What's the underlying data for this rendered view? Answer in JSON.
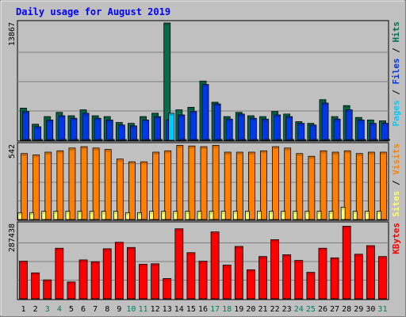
{
  "chart_data": {
    "type": "bar",
    "title": "Daily usage for August 2019",
    "categories": [
      "1",
      "2",
      "3",
      "4",
      "5",
      "6",
      "7",
      "8",
      "9",
      "10",
      "11",
      "12",
      "13",
      "14",
      "15",
      "16",
      "17",
      "18",
      "19",
      "20",
      "21",
      "22",
      "23",
      "24",
      "25",
      "26",
      "27",
      "28",
      "29",
      "30",
      "31"
    ],
    "weekend_days": [
      "3",
      "4",
      "10",
      "11",
      "17",
      "18",
      "24",
      "25",
      "31"
    ],
    "panels": [
      {
        "id": "hits_files_pages",
        "max_label": "13867",
        "ylim": [
          0,
          13867
        ],
        "legend": [
          "Pages",
          "Files",
          "Hits"
        ],
        "series": [
          {
            "name": "Hits",
            "color": "#006F4E",
            "values": [
              3800,
              1900,
              2800,
              3300,
              2900,
              3600,
              2900,
              2800,
              2100,
              2000,
              2800,
              3200,
              13867,
              3600,
              3900,
              7000,
              4500,
              2800,
              3300,
              2900,
              2800,
              3400,
              3100,
              2200,
              2000,
              4800,
              2800,
              4100,
              2700,
              2400,
              2300
            ]
          },
          {
            "name": "Files",
            "color": "#0037E6",
            "values": [
              3400,
              1600,
              2400,
              2900,
              2600,
              3200,
              2600,
              2400,
              1800,
              1700,
              2400,
              2800,
              2400,
              3000,
              3400,
              6600,
              4300,
              2500,
              3100,
              2600,
              2500,
              3000,
              2800,
              2000,
              1800,
              4400,
              2500,
              3600,
              2400,
              2000,
              2000
            ]
          },
          {
            "name": "Pages",
            "color": "#00CCFF",
            "values": [
              60,
              40,
              50,
              60,
              50,
              60,
              50,
              50,
              40,
              40,
              50,
              60,
              3200,
              60,
              60,
              80,
              70,
              50,
              60,
              50,
              50,
              60,
              50,
              40,
              40,
              70,
              50,
              90,
              50,
              40,
              40
            ]
          }
        ]
      },
      {
        "id": "visits_sites",
        "max_label": "542",
        "ylim": [
          0,
          542
        ],
        "legend": [
          "Sites",
          "Visits"
        ],
        "series": [
          {
            "name": "Visits",
            "color": "#FF8000",
            "values": [
              480,
              470,
              490,
              500,
              520,
              530,
              520,
              510,
              440,
              420,
              420,
              490,
              500,
              540,
              535,
              530,
              540,
              490,
              490,
              490,
              500,
              530,
              520,
              480,
              460,
              500,
              490,
              500,
              480,
              490,
              490
            ]
          },
          {
            "name": "Sites",
            "color": "#FFFF66",
            "values": [
              50,
              50,
              60,
              60,
              60,
              60,
              60,
              60,
              60,
              50,
              50,
              60,
              60,
              60,
              60,
              60,
              60,
              60,
              60,
              60,
              60,
              60,
              60,
              60,
              60,
              60,
              60,
              90,
              60,
              60,
              60
            ]
          }
        ]
      },
      {
        "id": "kbytes",
        "max_label": "287438",
        "ylim": [
          0,
          287438
        ],
        "legend": [
          "KBytes"
        ],
        "series": [
          {
            "name": "KBytes",
            "color": "#FF0000",
            "values": [
              145000,
              100000,
              73000,
              195000,
              65000,
              150000,
              143000,
              193000,
              218000,
              198000,
              133000,
              135000,
              78000,
              270000,
              178000,
              145000,
              258000,
              130000,
              202000,
              112000,
              163000,
              228000,
              170000,
              148000,
              102000,
              195000,
              158000,
              280000,
              172000,
              205000,
              163000
            ]
          }
        ]
      }
    ]
  }
}
